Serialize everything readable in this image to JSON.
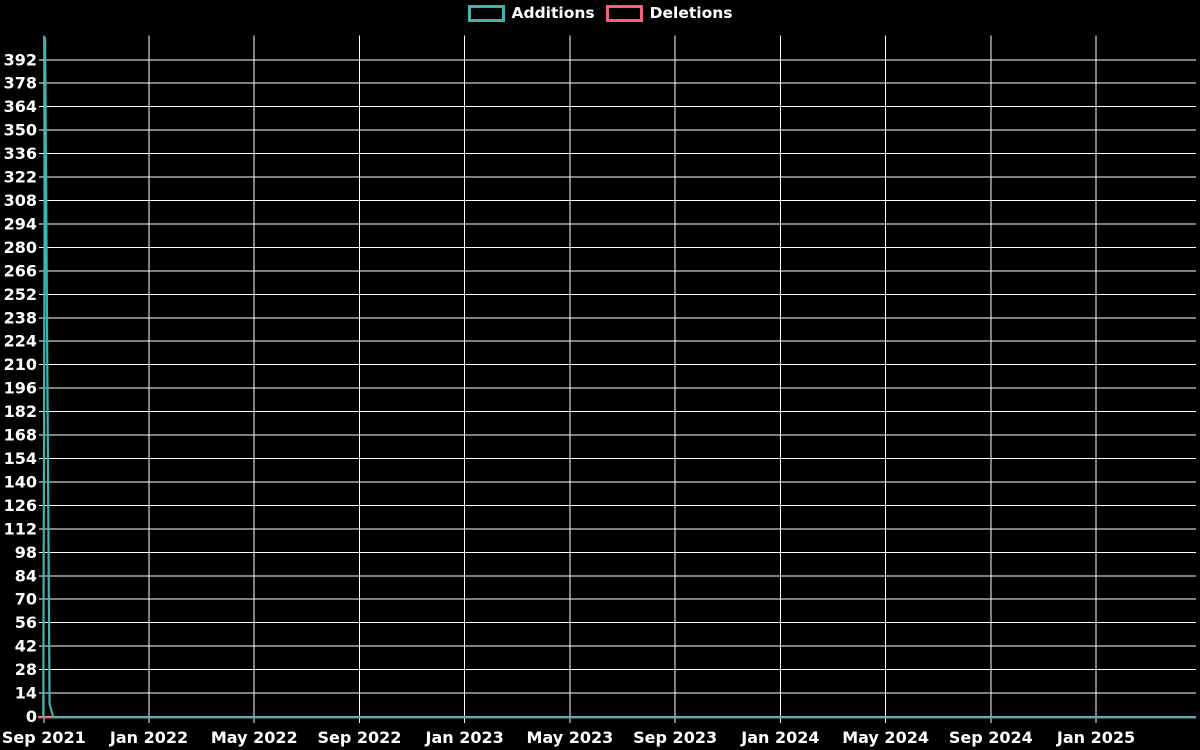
{
  "chart_data": {
    "type": "line",
    "title": "",
    "background_color": "#000000",
    "grid_color": "#ffffff",
    "text_color": "#ffffff",
    "grid": true,
    "legend_position": "top-center",
    "legend": [
      {
        "label": "Additions",
        "color": "#40b3ac"
      },
      {
        "label": "Deletions",
        "color": "#f2607a"
      }
    ],
    "x_axis": {
      "label": "",
      "tick_labels": [
        "Sep 2021",
        "Jan 2022",
        "May 2022",
        "Sep 2022",
        "Jan 2023",
        "May 2023",
        "Sep 2023",
        "Jan 2024",
        "May 2024",
        "Sep 2024",
        "Jan 2025"
      ],
      "tick_positions_months": [
        0,
        4,
        8,
        12,
        16,
        20,
        24,
        28,
        32,
        36,
        40
      ],
      "domain_months": [
        -0.22,
        43.8
      ],
      "domain_dates": [
        "late Aug 2021",
        "late Apr 2025"
      ]
    },
    "y_axis": {
      "label": "",
      "tick_step": 14,
      "ticks": [
        0,
        14,
        28,
        42,
        56,
        70,
        84,
        98,
        112,
        126,
        140,
        154,
        168,
        182,
        196,
        210,
        224,
        238,
        252,
        266,
        280,
        294,
        308,
        322,
        336,
        350,
        364,
        378,
        392
      ],
      "view_max": 406.5
    },
    "series": [
      {
        "name": "Additions",
        "color": "#40b3ac",
        "points_month_value": [
          [
            -0.02,
            0
          ],
          [
            0.05,
            406
          ],
          [
            0.22,
            8
          ],
          [
            0.36,
            0
          ],
          [
            43.8,
            0
          ]
        ],
        "description": "spike of ~406 additions at Sep 2021, ~8 the next week, 0 afterwards through Apr 2025"
      },
      {
        "name": "Deletions",
        "color": "#f2607a",
        "points_month_value": [
          [
            -0.22,
            0
          ],
          [
            43.8,
            0
          ]
        ],
        "description": "0 deletions for the entire range; visible only at far left where not covered by Additions line"
      }
    ]
  }
}
